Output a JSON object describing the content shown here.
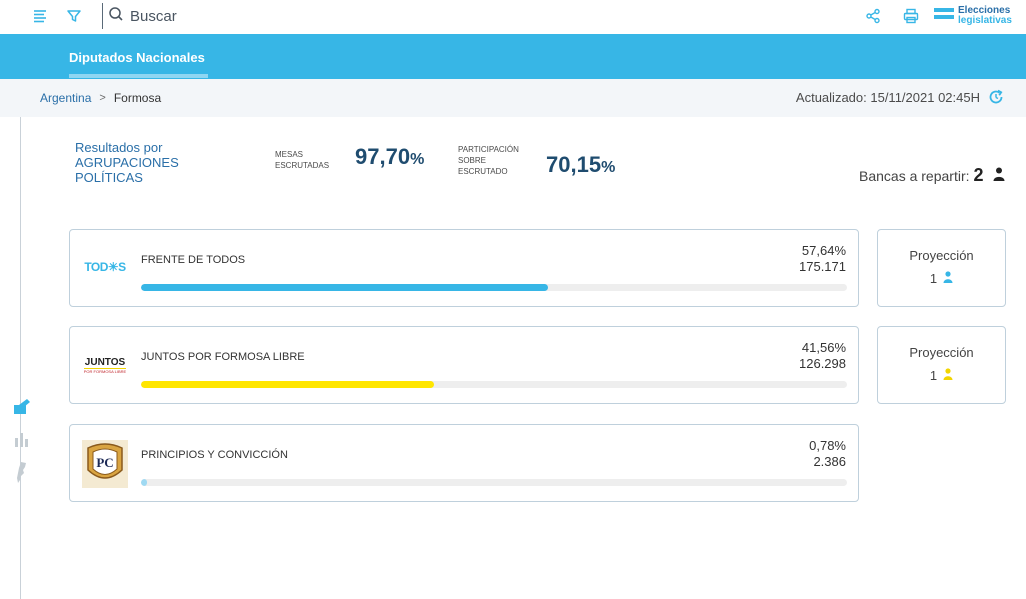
{
  "search": {
    "placeholder": "Buscar"
  },
  "brand": {
    "line1": "Elecciones",
    "line2": "legislativas"
  },
  "tabs": [
    {
      "label": "Diputados Nacionales",
      "active": true
    }
  ],
  "breadcrumb": {
    "root": "Argentina",
    "separator": ">",
    "current": "Formosa"
  },
  "updated": "Actualizado: 15/11/2021 02:45H",
  "summary": {
    "title_line1": "Resultados por",
    "title_line2": "AGRUPACIONES",
    "title_line3": "POLÍTICAS",
    "mesas_label1": "MESAS",
    "mesas_label2": "ESCRUTADAS",
    "mesas_value": "97,70",
    "participacion_label1": "PARTICIPACIÓN",
    "participacion_label2": "SOBRE",
    "participacion_label3": "ESCRUTADO",
    "participacion_value": "70,15",
    "percent_sign": "%",
    "seats_label": "Bancas a repartir:",
    "seats_value": "2"
  },
  "parties": [
    {
      "name": "FRENTE DE TODOS",
      "pct": "57,64%",
      "votes": "175.171",
      "share": 57.64,
      "color": "#37b6e6",
      "logo_text": "TOD☀S",
      "projection_label": "Proyección",
      "projection_seats": "1",
      "seat_color": "#37b6e6"
    },
    {
      "name": "JUNTOS POR FORMOSA LIBRE",
      "pct": "41,56%",
      "votes": "126.298",
      "share": 41.56,
      "color": "#ffe600",
      "logo_text": "JUNTOS",
      "logo_sub": "POR FORMOSA LIBRE",
      "projection_label": "Proyección",
      "projection_seats": "1",
      "seat_color": "#f2d500"
    },
    {
      "name": "PRINCIPIOS Y CONVICCIÓN",
      "pct": "0,78%",
      "votes": "2.386",
      "share": 0.78,
      "color": "#9fd9f2",
      "logo_text": "PC"
    }
  ],
  "colors": {
    "accent": "#37b6e6",
    "dark_blue": "#1f4c6f",
    "link_blue": "#2a6fa8"
  },
  "icons": [
    "menu-icon",
    "filter-icon",
    "search-icon",
    "share-icon",
    "print-icon",
    "refresh-icon",
    "vote-icon",
    "bar-chart-icon",
    "map-icon",
    "person-icon"
  ]
}
